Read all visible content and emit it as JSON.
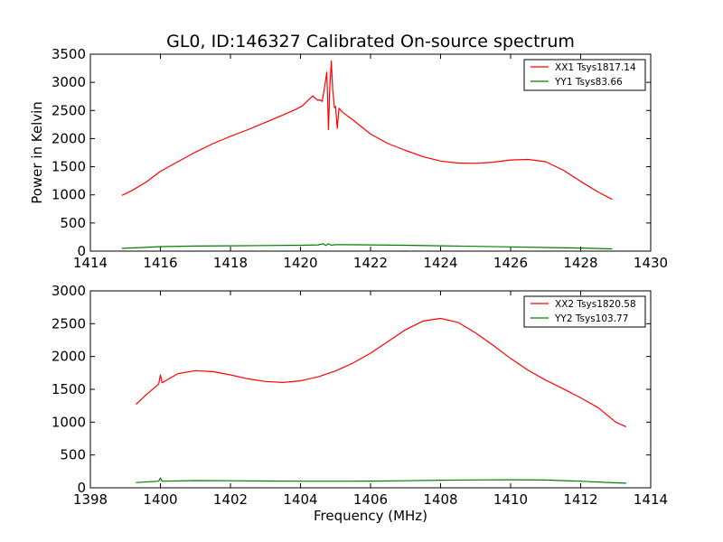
{
  "figure": {
    "title": "GL0, ID:146327 Calibrated On-source spectrum"
  },
  "chart_data": [
    {
      "type": "line",
      "title": "GL0, ID:146327 Calibrated On-source spectrum",
      "xlabel": "",
      "ylabel": "Power in Kelvin",
      "xlim": [
        1414,
        1430
      ],
      "ylim": [
        0,
        3500
      ],
      "xticks": [
        "1414",
        "1416",
        "1418",
        "1420",
        "1422",
        "1424",
        "1426",
        "1428",
        "1430"
      ],
      "yticks": [
        "0",
        "500",
        "1000",
        "1500",
        "2000",
        "2500",
        "3000",
        "3500"
      ],
      "legend_position": "top-right",
      "grid": false,
      "series": [
        {
          "name": "XX1 Tsys1817.14",
          "color": "#ff0000",
          "points": [
            [
              1414.9,
              990
            ],
            [
              1415.2,
              1080
            ],
            [
              1415.6,
              1230
            ],
            [
              1416.0,
              1420
            ],
            [
              1416.5,
              1590
            ],
            [
              1417.0,
              1760
            ],
            [
              1417.5,
              1910
            ],
            [
              1418.0,
              2040
            ],
            [
              1418.5,
              2160
            ],
            [
              1419.0,
              2290
            ],
            [
              1419.5,
              2420
            ],
            [
              1419.9,
              2530
            ],
            [
              1420.05,
              2580
            ],
            [
              1420.25,
              2700
            ],
            [
              1420.35,
              2760
            ],
            [
              1420.45,
              2700
            ],
            [
              1420.5,
              2680
            ],
            [
              1420.55,
              2690
            ],
            [
              1420.62,
              2660
            ],
            [
              1420.7,
              2960
            ],
            [
              1420.75,
              3180
            ],
            [
              1420.78,
              2600
            ],
            [
              1420.8,
              2160
            ],
            [
              1420.83,
              2840
            ],
            [
              1420.88,
              3380
            ],
            [
              1420.92,
              2850
            ],
            [
              1420.97,
              2550
            ],
            [
              1421.0,
              2570
            ],
            [
              1421.05,
              2180
            ],
            [
              1421.1,
              2540
            ],
            [
              1421.2,
              2470
            ],
            [
              1421.5,
              2330
            ],
            [
              1422.0,
              2080
            ],
            [
              1422.5,
              1910
            ],
            [
              1423.0,
              1790
            ],
            [
              1423.5,
              1680
            ],
            [
              1424.0,
              1600
            ],
            [
              1424.5,
              1565
            ],
            [
              1425.0,
              1560
            ],
            [
              1425.5,
              1580
            ],
            [
              1426.0,
              1620
            ],
            [
              1426.5,
              1630
            ],
            [
              1427.0,
              1590
            ],
            [
              1427.5,
              1440
            ],
            [
              1428.0,
              1240
            ],
            [
              1428.5,
              1050
            ],
            [
              1428.9,
              920
            ]
          ]
        },
        {
          "name": "YY1 Tsys83.66",
          "color": "#008000",
          "points": [
            [
              1414.9,
              50
            ],
            [
              1415.5,
              65
            ],
            [
              1416.0,
              80
            ],
            [
              1417.0,
              90
            ],
            [
              1418.0,
              95
            ],
            [
              1419.0,
              100
            ],
            [
              1420.0,
              105
            ],
            [
              1420.5,
              110
            ],
            [
              1420.65,
              130
            ],
            [
              1420.72,
              100
            ],
            [
              1420.8,
              130
            ],
            [
              1420.88,
              105
            ],
            [
              1421.0,
              115
            ],
            [
              1422.0,
              110
            ],
            [
              1423.0,
              105
            ],
            [
              1424.0,
              95
            ],
            [
              1425.0,
              85
            ],
            [
              1426.0,
              75
            ],
            [
              1427.0,
              65
            ],
            [
              1428.0,
              55
            ],
            [
              1428.9,
              40
            ]
          ]
        }
      ]
    },
    {
      "type": "line",
      "title": "",
      "xlabel": "Frequency (MHz)",
      "ylabel": "",
      "xlim": [
        1398,
        1414
      ],
      "ylim": [
        0,
        3000
      ],
      "xticks": [
        "1398",
        "1400",
        "1402",
        "1404",
        "1406",
        "1408",
        "1410",
        "1412",
        "1414"
      ],
      "yticks": [
        "0",
        "500",
        "1000",
        "1500",
        "2000",
        "2500",
        "3000"
      ],
      "legend_position": "top-right",
      "grid": false,
      "series": [
        {
          "name": "XX2 Tsys1820.58",
          "color": "#ff0000",
          "points": [
            [
              1399.3,
              1270
            ],
            [
              1399.6,
              1420
            ],
            [
              1399.95,
              1580
            ],
            [
              1400.0,
              1720
            ],
            [
              1400.05,
              1600
            ],
            [
              1400.5,
              1740
            ],
            [
              1401.0,
              1785
            ],
            [
              1401.5,
              1770
            ],
            [
              1402.0,
              1720
            ],
            [
              1402.5,
              1660
            ],
            [
              1403.0,
              1620
            ],
            [
              1403.5,
              1605
            ],
            [
              1404.0,
              1630
            ],
            [
              1404.5,
              1690
            ],
            [
              1405.0,
              1780
            ],
            [
              1405.5,
              1900
            ],
            [
              1406.0,
              2050
            ],
            [
              1406.5,
              2230
            ],
            [
              1407.0,
              2410
            ],
            [
              1407.5,
              2540
            ],
            [
              1408.0,
              2580
            ],
            [
              1408.5,
              2520
            ],
            [
              1409.0,
              2360
            ],
            [
              1409.5,
              2170
            ],
            [
              1410.0,
              1970
            ],
            [
              1410.5,
              1790
            ],
            [
              1411.0,
              1640
            ],
            [
              1411.5,
              1510
            ],
            [
              1412.0,
              1370
            ],
            [
              1412.5,
              1220
            ],
            [
              1413.0,
              1000
            ],
            [
              1413.3,
              930
            ]
          ]
        },
        {
          "name": "YY2 Tsys103.77",
          "color": "#008000",
          "points": [
            [
              1399.3,
              80
            ],
            [
              1399.95,
              100
            ],
            [
              1400.0,
              150
            ],
            [
              1400.05,
              100
            ],
            [
              1401.0,
              110
            ],
            [
              1402.0,
              108
            ],
            [
              1403.0,
              103
            ],
            [
              1404.0,
              100
            ],
            [
              1405.0,
              100
            ],
            [
              1406.0,
              102
            ],
            [
              1407.0,
              108
            ],
            [
              1408.0,
              115
            ],
            [
              1409.0,
              120
            ],
            [
              1410.0,
              122
            ],
            [
              1411.0,
              118
            ],
            [
              1412.0,
              100
            ],
            [
              1413.0,
              75
            ],
            [
              1413.3,
              70
            ]
          ]
        }
      ]
    }
  ]
}
